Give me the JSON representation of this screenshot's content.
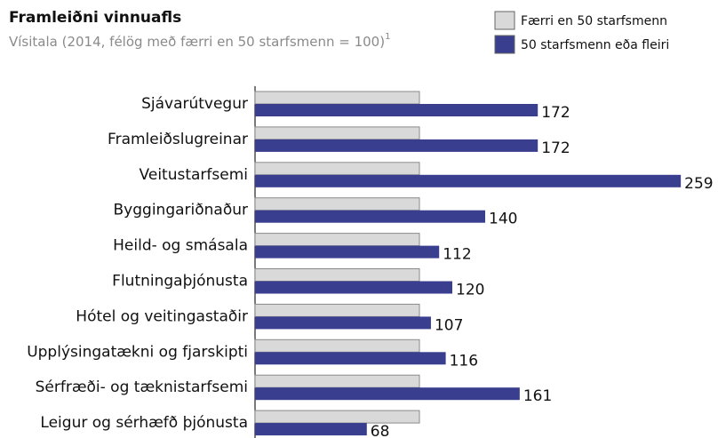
{
  "chart_data": {
    "type": "bar",
    "orientation": "horizontal",
    "title": "Framleiðni vinnuafls",
    "subtitle": "Vísitala (2014, félög með færri en 50 starfsmenn = 100)",
    "subtitle_footnote": "1",
    "categories": [
      "Sjávarútvegur",
      "Framleiðslugreinar",
      "Veitustarfsemi",
      "Byggingariðnaður",
      "Heild- og smásala",
      "Flutningaþjónusta",
      "Hótel og veitingastaðir",
      "Upplýsingatækni og fjarskipti",
      "Sérfræði- og tæknistarfsemi",
      "Leigur og sérhæfð þjónusta"
    ],
    "series": [
      {
        "name": "Færri en 50 starfsmenn",
        "color": "#d9d9d9",
        "values": [
          100,
          100,
          100,
          100,
          100,
          100,
          100,
          100,
          100,
          100
        ]
      },
      {
        "name": "50 starfsmenn eða fleiri",
        "color": "#393e8f",
        "values": [
          172,
          172,
          259,
          140,
          112,
          120,
          107,
          116,
          161,
          68
        ],
        "labels": true
      }
    ],
    "xlim": [
      0,
      280
    ]
  }
}
